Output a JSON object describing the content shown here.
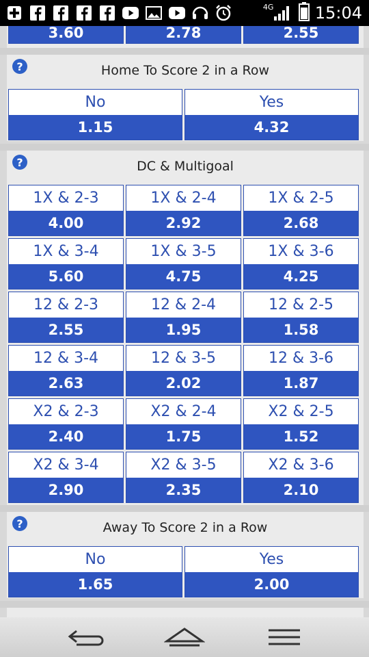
{
  "status_bar": {
    "time": "15:04",
    "network": "4G"
  },
  "top_partial_row": [
    "3.60",
    "2.78",
    "2.55"
  ],
  "sections": [
    {
      "title": "Home To Score 2 in a Row",
      "options": [
        {
          "label": "No",
          "odds": "1.15"
        },
        {
          "label": "Yes",
          "odds": "4.32"
        }
      ]
    },
    {
      "title": "DC & Multigoal",
      "options": [
        {
          "label": "1X & 2-3",
          "odds": "4.00"
        },
        {
          "label": "1X & 2-4",
          "odds": "2.92"
        },
        {
          "label": "1X & 2-5",
          "odds": "2.68"
        },
        {
          "label": "1X & 3-4",
          "odds": "5.60"
        },
        {
          "label": "1X & 3-5",
          "odds": "4.75"
        },
        {
          "label": "1X & 3-6",
          "odds": "4.25"
        },
        {
          "label": "12 & 2-3",
          "odds": "2.55"
        },
        {
          "label": "12 & 2-4",
          "odds": "1.95"
        },
        {
          "label": "12 & 2-5",
          "odds": "1.58"
        },
        {
          "label": "12 & 3-4",
          "odds": "2.63"
        },
        {
          "label": "12 & 3-5",
          "odds": "2.02"
        },
        {
          "label": "12 & 3-6",
          "odds": "1.87"
        },
        {
          "label": "X2 & 2-3",
          "odds": "2.40"
        },
        {
          "label": "X2 & 2-4",
          "odds": "1.75"
        },
        {
          "label": "X2 & 2-5",
          "odds": "1.52"
        },
        {
          "label": "X2 & 3-4",
          "odds": "2.90"
        },
        {
          "label": "X2 & 3-5",
          "odds": "2.35"
        },
        {
          "label": "X2 & 3-6",
          "odds": "2.10"
        }
      ]
    },
    {
      "title": "Away To Score 2 in a Row",
      "options": [
        {
          "label": "No",
          "odds": "1.65"
        },
        {
          "label": "Yes",
          "odds": "2.00"
        }
      ]
    }
  ],
  "icons": {
    "help": "?",
    "back": "back-icon",
    "home": "home-icon",
    "menu": "menu-icon"
  },
  "colors": {
    "accent": "#2f55c0",
    "border": "#2d4fb0"
  }
}
